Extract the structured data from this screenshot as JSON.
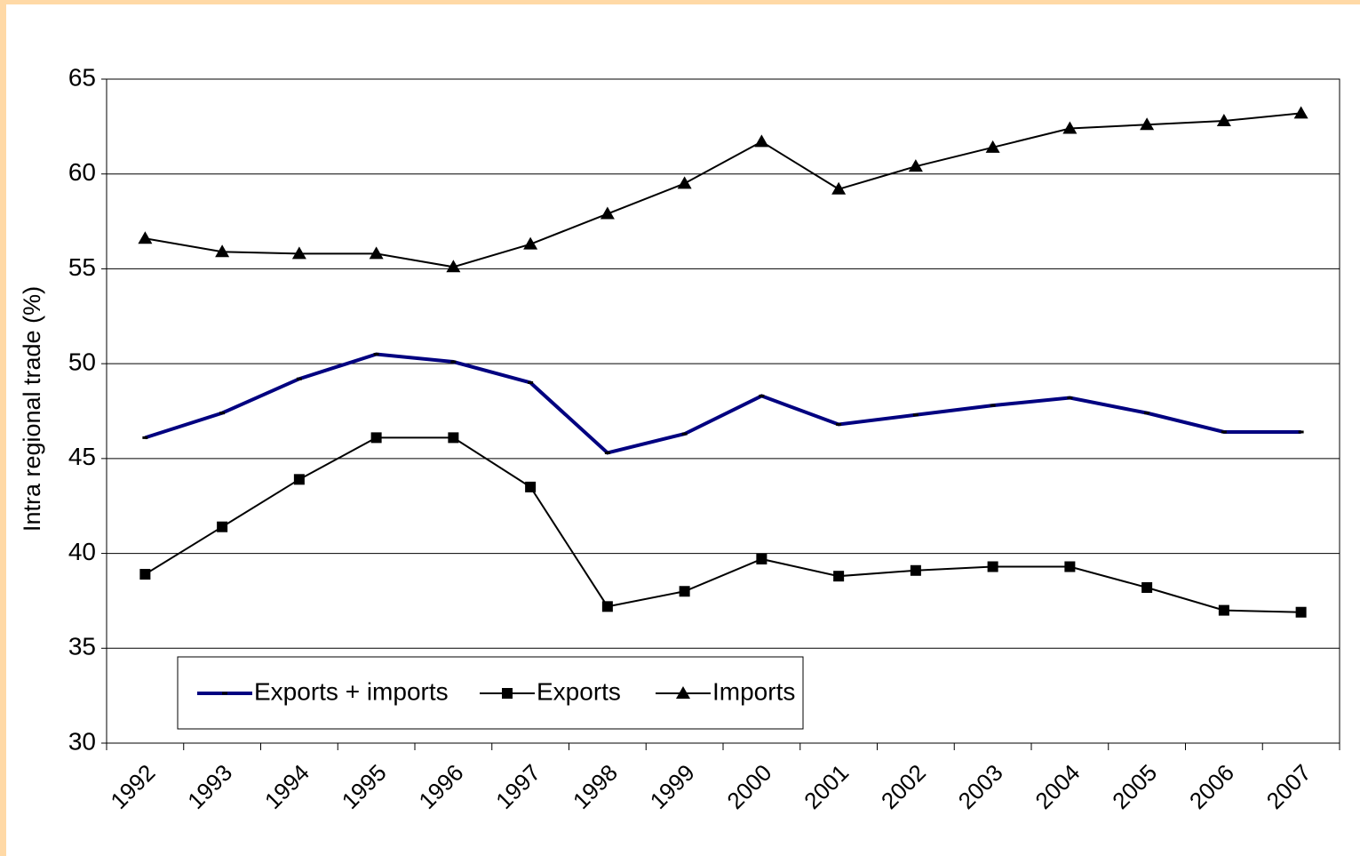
{
  "chart_data": {
    "type": "line",
    "y_label": "Intra regional trade (%)",
    "categories": [
      "1992",
      "1993",
      "1994",
      "1995",
      "1996",
      "1997",
      "1998",
      "1999",
      "2000",
      "2001",
      "2002",
      "2003",
      "2004",
      "2005",
      "2006",
      "2007"
    ],
    "series": [
      {
        "name": "Exports + imports",
        "color": "#000080",
        "marker": "dash",
        "values": [
          46.1,
          47.4,
          49.2,
          50.5,
          50.1,
          49.0,
          45.3,
          46.3,
          48.3,
          46.8,
          47.3,
          47.8,
          48.2,
          47.4,
          46.4,
          46.4
        ]
      },
      {
        "name": "Exports",
        "color": "#000000",
        "marker": "square",
        "values": [
          38.9,
          41.4,
          43.9,
          46.1,
          46.1,
          43.5,
          37.2,
          38.0,
          39.7,
          38.8,
          39.1,
          39.3,
          39.3,
          38.2,
          37.0,
          36.9
        ]
      },
      {
        "name": "Imports",
        "color": "#000000",
        "marker": "triangle",
        "values": [
          56.6,
          55.9,
          55.8,
          55.8,
          55.1,
          56.3,
          57.9,
          59.5,
          61.7,
          59.2,
          60.4,
          61.4,
          62.4,
          62.6,
          62.8,
          63.2
        ]
      }
    ],
    "ylim": [
      30,
      65
    ],
    "yticks": [
      30,
      35,
      40,
      45,
      50,
      55,
      60,
      65
    ],
    "grid": true,
    "legend": "lower left"
  }
}
